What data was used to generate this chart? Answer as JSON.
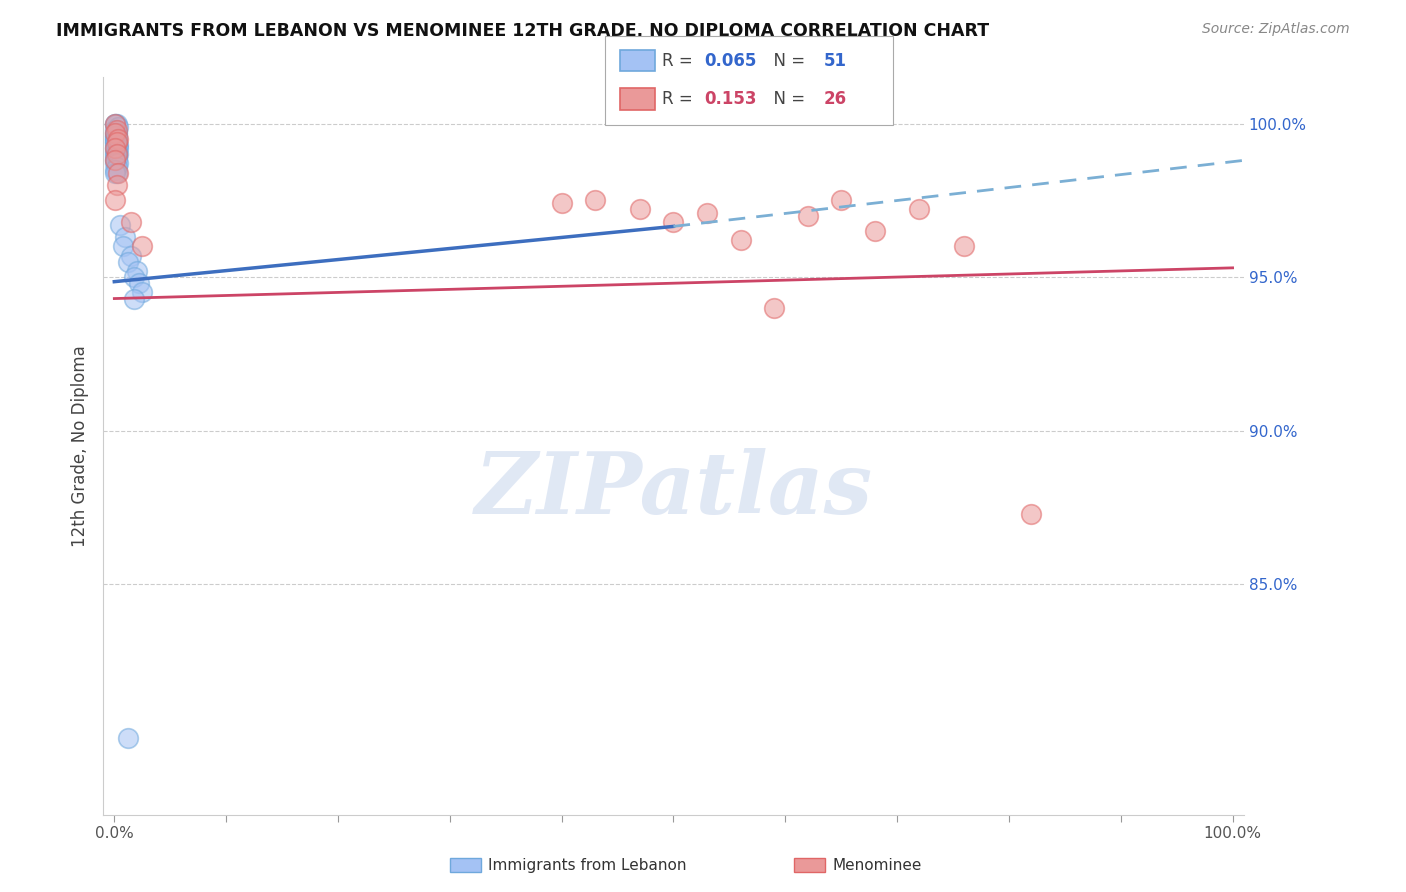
{
  "title": "IMMIGRANTS FROM LEBANON VS MENOMINEE 12TH GRADE, NO DIPLOMA CORRELATION CHART",
  "source": "Source: ZipAtlas.com",
  "ylabel": "12th Grade, No Diploma",
  "right_ytick_vals": [
    0.85,
    0.9,
    0.95,
    1.0
  ],
  "right_ytick_labels": [
    "85.0%",
    "90.0%",
    "95.0%",
    "100.0%"
  ],
  "blue_color_fill": "#a4c2f4",
  "blue_color_edge": "#6fa8dc",
  "pink_color_fill": "#ea9999",
  "pink_color_edge": "#e06666",
  "regression_blue_color": "#3d6ebf",
  "regression_pink_color": "#cc4466",
  "regression_dashed_color": "#7bafd4",
  "watermark_text": "ZIPatlas",
  "legend_r_blue": "0.065",
  "legend_n_blue": "51",
  "legend_r_pink": "0.153",
  "legend_n_pink": "26",
  "blue_x": [
    0.001,
    0.002,
    0.001,
    0.003,
    0.001,
    0.002,
    0.001,
    0.002,
    0.001,
    0.002,
    0.001,
    0.001,
    0.002,
    0.001,
    0.002,
    0.001,
    0.002,
    0.001,
    0.003,
    0.002,
    0.001,
    0.002,
    0.001,
    0.002,
    0.003,
    0.001,
    0.002,
    0.001,
    0.003,
    0.002,
    0.001,
    0.002,
    0.001,
    0.002,
    0.001,
    0.003,
    0.002,
    0.001,
    0.002,
    0.001,
    0.005,
    0.01,
    0.008,
    0.015,
    0.012,
    0.02,
    0.018,
    0.022,
    0.025,
    0.018,
    0.012
  ],
  "blue_y": [
    1.0,
    1.0,
    1.0,
    0.999,
    0.998,
    0.997,
    0.997,
    0.997,
    0.996,
    0.996,
    0.996,
    0.995,
    0.995,
    0.995,
    0.995,
    0.994,
    0.994,
    0.994,
    0.993,
    0.993,
    0.993,
    0.993,
    0.992,
    0.992,
    0.992,
    0.991,
    0.991,
    0.99,
    0.99,
    0.99,
    0.989,
    0.989,
    0.988,
    0.988,
    0.987,
    0.987,
    0.986,
    0.985,
    0.984,
    0.984,
    0.967,
    0.963,
    0.96,
    0.957,
    0.955,
    0.952,
    0.95,
    0.948,
    0.945,
    0.943,
    0.8
  ],
  "pink_x": [
    0.001,
    0.002,
    0.001,
    0.003,
    0.002,
    0.001,
    0.002,
    0.001,
    0.003,
    0.002,
    0.001,
    0.015,
    0.025,
    0.4,
    0.43,
    0.47,
    0.5,
    0.53,
    0.56,
    0.59,
    0.62,
    0.65,
    0.68,
    0.72,
    0.76,
    0.82
  ],
  "pink_y": [
    1.0,
    0.998,
    0.997,
    0.995,
    0.994,
    0.992,
    0.99,
    0.988,
    0.984,
    0.98,
    0.975,
    0.968,
    0.96,
    0.974,
    0.975,
    0.972,
    0.968,
    0.971,
    0.962,
    0.94,
    0.97,
    0.975,
    0.965,
    0.972,
    0.96,
    0.873
  ],
  "xlim": [
    -0.01,
    1.01
  ],
  "ylim": [
    0.775,
    1.015
  ],
  "blue_line_x": [
    0.0,
    0.5
  ],
  "blue_line_y": [
    0.9485,
    0.9665
  ],
  "pink_line_x": [
    0.0,
    1.0
  ],
  "pink_line_y": [
    0.943,
    0.953
  ],
  "dash_line_x": [
    0.5,
    1.01
  ],
  "dash_line_y": [
    0.9665,
    0.988
  ]
}
